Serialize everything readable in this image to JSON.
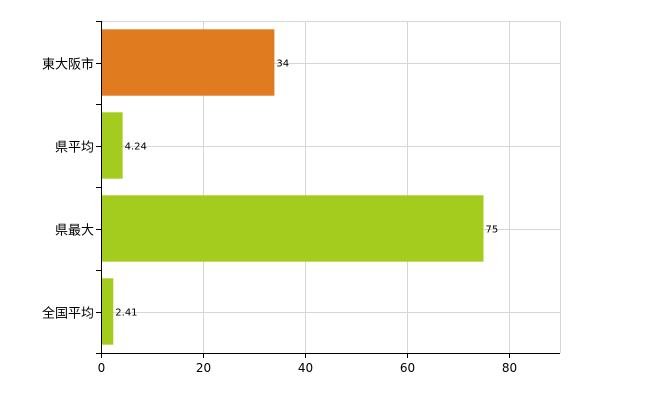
{
  "chart_data": {
    "type": "bar",
    "orientation": "horizontal",
    "title": "",
    "xlabel": "",
    "ylabel": "",
    "categories": [
      "東大阪市",
      "県平均",
      "県最大",
      "全国平均"
    ],
    "values": [
      34,
      4.24,
      75,
      2.41
    ],
    "value_labels": [
      "34",
      "4.24",
      "75",
      "2.41"
    ],
    "bar_colors": [
      "#e07b1f",
      "#a4cc1e",
      "#a4cc1e",
      "#a4cc1e"
    ],
    "xlim": [
      0,
      90
    ],
    "xticks": [
      0,
      20,
      40,
      60,
      80
    ],
    "xtick_labels": [
      "0",
      "20",
      "40",
      "60",
      "80"
    ],
    "grid": true,
    "legend": "none"
  }
}
